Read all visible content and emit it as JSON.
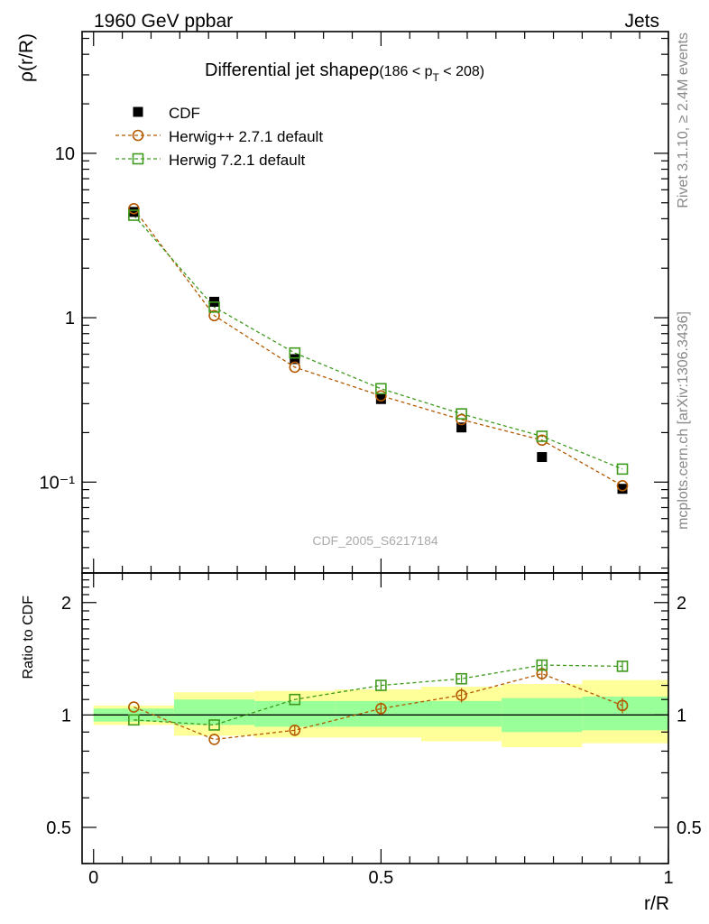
{
  "header": {
    "left": "1960 GeV ppbar",
    "right": "Jets"
  },
  "side_labels": {
    "rivet": "Rivet 3.1.10, ≥ 2.4M events",
    "source": "mcplots.cern.ch [arXiv:1306.3436]"
  },
  "watermark": "CDF_2005_S6217184",
  "chart_data": [
    {
      "type": "scatter",
      "title_main": "Differential jet shapeρ",
      "title_cut": "(186 < p",
      "title_sub": "T",
      "title_end": " < 208)",
      "ylabel": "ρ(r/R)",
      "yscale": "log",
      "ylim": [
        0.028,
        55
      ],
      "xlim": [
        -0.02,
        1.0
      ],
      "ytick_labels": [
        "10",
        "1",
        "10⁻¹"
      ],
      "ytick_values": [
        10,
        1,
        0.1
      ],
      "legend_position": "top-left",
      "x": [
        0.07,
        0.21,
        0.35,
        0.5,
        0.64,
        0.78,
        0.92
      ],
      "series": [
        {
          "name": "CDF",
          "marker": "filled-square",
          "color": "#000000",
          "values": [
            4.4,
            1.25,
            0.56,
            0.32,
            0.215,
            0.142,
            0.091
          ]
        },
        {
          "name": "Herwig++ 2.7.1 default",
          "marker": "open-circle",
          "color": "#b35900",
          "values": [
            4.6,
            1.03,
            0.5,
            0.335,
            0.24,
            0.18,
            0.095
          ]
        },
        {
          "name": "Herwig 7.2.1 default",
          "marker": "open-square",
          "color": "#3f9a1e",
          "values": [
            4.2,
            1.16,
            0.61,
            0.37,
            0.26,
            0.19,
            0.12
          ]
        }
      ]
    },
    {
      "type": "scatter",
      "ylabel": "Ratio to CDF",
      "xlabel": "r/R",
      "yscale": "log",
      "ylim": [
        0.4,
        2.4
      ],
      "xlim": [
        -0.02,
        1.0
      ],
      "ytick_labels": [
        "2",
        "1",
        "0.5"
      ],
      "ytick_values": [
        2,
        1,
        0.5
      ],
      "xtick_labels": [
        "0",
        "0.5",
        "1"
      ],
      "xtick_values": [
        0,
        0.5,
        1
      ],
      "reference_line": 1,
      "x": [
        0.07,
        0.21,
        0.35,
        0.5,
        0.64,
        0.78,
        0.92
      ],
      "bins": [
        [
          0,
          0.14
        ],
        [
          0.14,
          0.28
        ],
        [
          0.28,
          0.42
        ],
        [
          0.42,
          0.57
        ],
        [
          0.57,
          0.71
        ],
        [
          0.71,
          0.85
        ],
        [
          0.85,
          1.0
        ]
      ],
      "band_inner": [
        [
          0.96,
          1.04
        ],
        [
          0.94,
          1.1
        ],
        [
          0.93,
          1.09
        ],
        [
          0.93,
          1.09
        ],
        [
          0.93,
          1.09
        ],
        [
          0.9,
          1.11
        ],
        [
          0.91,
          1.12
        ]
      ],
      "band_outer": [
        [
          0.94,
          1.06
        ],
        [
          0.88,
          1.15
        ],
        [
          0.87,
          1.16
        ],
        [
          0.87,
          1.17
        ],
        [
          0.85,
          1.19
        ],
        [
          0.82,
          1.21
        ],
        [
          0.84,
          1.24
        ]
      ],
      "series": [
        {
          "name": "Herwig++ 2.7.1 default",
          "marker": "open-circle",
          "color": "#b35900",
          "values": [
            1.05,
            0.86,
            0.91,
            1.04,
            1.13,
            1.29,
            1.06
          ],
          "errors": [
            0.0,
            0.0,
            0.03,
            0.04,
            0.05,
            0.05,
            0.05
          ]
        },
        {
          "name": "Herwig 7.2.1 default",
          "marker": "open-square",
          "color": "#3f9a1e",
          "values": [
            0.97,
            0.94,
            1.1,
            1.2,
            1.25,
            1.36,
            1.35
          ],
          "errors": [
            0.0,
            0.0,
            0.0,
            0.03,
            0.03,
            0.04,
            0.04
          ]
        }
      ]
    }
  ]
}
